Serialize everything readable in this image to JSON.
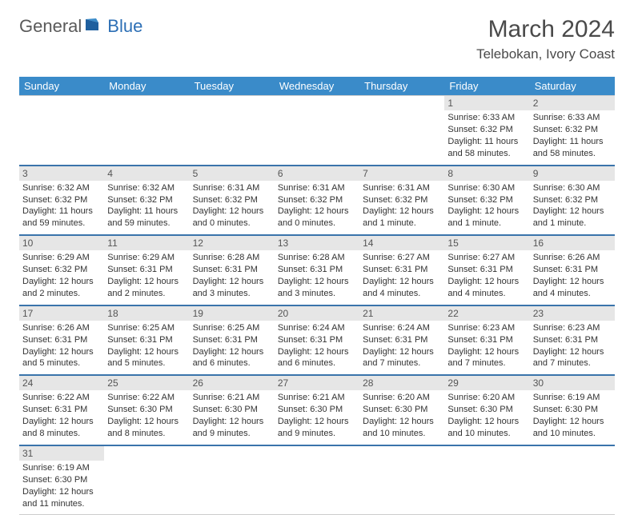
{
  "logo": {
    "general": "General",
    "blue": "Blue"
  },
  "title": "March 2024",
  "location": "Telebokan, Ivory Coast",
  "colors": {
    "header_bg": "#3a8bc9",
    "header_text": "#ffffff",
    "row_divider": "#3a74ab",
    "day_number_bg": "#e6e6e6",
    "text": "#333333"
  },
  "day_headers": [
    "Sunday",
    "Monday",
    "Tuesday",
    "Wednesday",
    "Thursday",
    "Friday",
    "Saturday"
  ],
  "weeks": [
    [
      null,
      null,
      null,
      null,
      null,
      {
        "n": "1",
        "sr": "Sunrise: 6:33 AM",
        "ss": "Sunset: 6:32 PM",
        "dl": "Daylight: 11 hours and 58 minutes."
      },
      {
        "n": "2",
        "sr": "Sunrise: 6:33 AM",
        "ss": "Sunset: 6:32 PM",
        "dl": "Daylight: 11 hours and 58 minutes."
      }
    ],
    [
      {
        "n": "3",
        "sr": "Sunrise: 6:32 AM",
        "ss": "Sunset: 6:32 PM",
        "dl": "Daylight: 11 hours and 59 minutes."
      },
      {
        "n": "4",
        "sr": "Sunrise: 6:32 AM",
        "ss": "Sunset: 6:32 PM",
        "dl": "Daylight: 11 hours and 59 minutes."
      },
      {
        "n": "5",
        "sr": "Sunrise: 6:31 AM",
        "ss": "Sunset: 6:32 PM",
        "dl": "Daylight: 12 hours and 0 minutes."
      },
      {
        "n": "6",
        "sr": "Sunrise: 6:31 AM",
        "ss": "Sunset: 6:32 PM",
        "dl": "Daylight: 12 hours and 0 minutes."
      },
      {
        "n": "7",
        "sr": "Sunrise: 6:31 AM",
        "ss": "Sunset: 6:32 PM",
        "dl": "Daylight: 12 hours and 1 minute."
      },
      {
        "n": "8",
        "sr": "Sunrise: 6:30 AM",
        "ss": "Sunset: 6:32 PM",
        "dl": "Daylight: 12 hours and 1 minute."
      },
      {
        "n": "9",
        "sr": "Sunrise: 6:30 AM",
        "ss": "Sunset: 6:32 PM",
        "dl": "Daylight: 12 hours and 1 minute."
      }
    ],
    [
      {
        "n": "10",
        "sr": "Sunrise: 6:29 AM",
        "ss": "Sunset: 6:32 PM",
        "dl": "Daylight: 12 hours and 2 minutes."
      },
      {
        "n": "11",
        "sr": "Sunrise: 6:29 AM",
        "ss": "Sunset: 6:31 PM",
        "dl": "Daylight: 12 hours and 2 minutes."
      },
      {
        "n": "12",
        "sr": "Sunrise: 6:28 AM",
        "ss": "Sunset: 6:31 PM",
        "dl": "Daylight: 12 hours and 3 minutes."
      },
      {
        "n": "13",
        "sr": "Sunrise: 6:28 AM",
        "ss": "Sunset: 6:31 PM",
        "dl": "Daylight: 12 hours and 3 minutes."
      },
      {
        "n": "14",
        "sr": "Sunrise: 6:27 AM",
        "ss": "Sunset: 6:31 PM",
        "dl": "Daylight: 12 hours and 4 minutes."
      },
      {
        "n": "15",
        "sr": "Sunrise: 6:27 AM",
        "ss": "Sunset: 6:31 PM",
        "dl": "Daylight: 12 hours and 4 minutes."
      },
      {
        "n": "16",
        "sr": "Sunrise: 6:26 AM",
        "ss": "Sunset: 6:31 PM",
        "dl": "Daylight: 12 hours and 4 minutes."
      }
    ],
    [
      {
        "n": "17",
        "sr": "Sunrise: 6:26 AM",
        "ss": "Sunset: 6:31 PM",
        "dl": "Daylight: 12 hours and 5 minutes."
      },
      {
        "n": "18",
        "sr": "Sunrise: 6:25 AM",
        "ss": "Sunset: 6:31 PM",
        "dl": "Daylight: 12 hours and 5 minutes."
      },
      {
        "n": "19",
        "sr": "Sunrise: 6:25 AM",
        "ss": "Sunset: 6:31 PM",
        "dl": "Daylight: 12 hours and 6 minutes."
      },
      {
        "n": "20",
        "sr": "Sunrise: 6:24 AM",
        "ss": "Sunset: 6:31 PM",
        "dl": "Daylight: 12 hours and 6 minutes."
      },
      {
        "n": "21",
        "sr": "Sunrise: 6:24 AM",
        "ss": "Sunset: 6:31 PM",
        "dl": "Daylight: 12 hours and 7 minutes."
      },
      {
        "n": "22",
        "sr": "Sunrise: 6:23 AM",
        "ss": "Sunset: 6:31 PM",
        "dl": "Daylight: 12 hours and 7 minutes."
      },
      {
        "n": "23",
        "sr": "Sunrise: 6:23 AM",
        "ss": "Sunset: 6:31 PM",
        "dl": "Daylight: 12 hours and 7 minutes."
      }
    ],
    [
      {
        "n": "24",
        "sr": "Sunrise: 6:22 AM",
        "ss": "Sunset: 6:31 PM",
        "dl": "Daylight: 12 hours and 8 minutes."
      },
      {
        "n": "25",
        "sr": "Sunrise: 6:22 AM",
        "ss": "Sunset: 6:30 PM",
        "dl": "Daylight: 12 hours and 8 minutes."
      },
      {
        "n": "26",
        "sr": "Sunrise: 6:21 AM",
        "ss": "Sunset: 6:30 PM",
        "dl": "Daylight: 12 hours and 9 minutes."
      },
      {
        "n": "27",
        "sr": "Sunrise: 6:21 AM",
        "ss": "Sunset: 6:30 PM",
        "dl": "Daylight: 12 hours and 9 minutes."
      },
      {
        "n": "28",
        "sr": "Sunrise: 6:20 AM",
        "ss": "Sunset: 6:30 PM",
        "dl": "Daylight: 12 hours and 10 minutes."
      },
      {
        "n": "29",
        "sr": "Sunrise: 6:20 AM",
        "ss": "Sunset: 6:30 PM",
        "dl": "Daylight: 12 hours and 10 minutes."
      },
      {
        "n": "30",
        "sr": "Sunrise: 6:19 AM",
        "ss": "Sunset: 6:30 PM",
        "dl": "Daylight: 12 hours and 10 minutes."
      }
    ],
    [
      {
        "n": "31",
        "sr": "Sunrise: 6:19 AM",
        "ss": "Sunset: 6:30 PM",
        "dl": "Daylight: 12 hours and 11 minutes."
      },
      null,
      null,
      null,
      null,
      null,
      null
    ]
  ]
}
